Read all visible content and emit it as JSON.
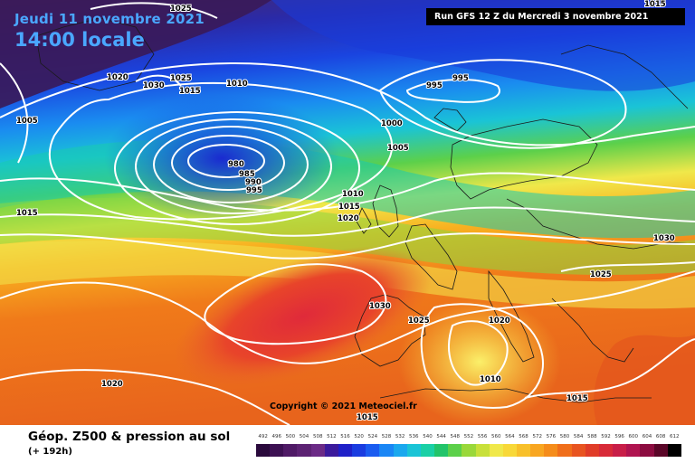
{
  "header": {
    "date": "Jeudi 11 novembre 2021",
    "time": "14:00 locale",
    "run": "Run GFS 12 Z du Mercredi 3 novembre 2021"
  },
  "copyright": "Copyright © 2021 Meteociel.fr",
  "footer": {
    "title": "Géop. Z500 & pression au sol",
    "subtitle": "(+ 192h)"
  },
  "legend": {
    "labels": [
      "492",
      "496",
      "500",
      "504",
      "508",
      "512",
      "516",
      "520",
      "524",
      "528",
      "532",
      "536",
      "540",
      "544",
      "548",
      "552",
      "556",
      "560",
      "564",
      "568",
      "572",
      "576",
      "580",
      "584",
      "588",
      "592",
      "596",
      "600",
      "604",
      "608",
      "612"
    ],
    "colors": [
      "#2a0a3c",
      "#3c1052",
      "#4f1a66",
      "#5c2273",
      "#6b2a86",
      "#3b1a9c",
      "#1f20c8",
      "#1a3ce0",
      "#1a5cf0",
      "#1a86f5",
      "#1aa8ee",
      "#1ac4d6",
      "#1ad0a6",
      "#22c46a",
      "#5cd04a",
      "#9ad83a",
      "#c8e03a",
      "#f0e84a",
      "#f8d838",
      "#f8c02a",
      "#f8a620",
      "#f58c1a",
      "#f06e1a",
      "#e85420",
      "#e03c28",
      "#d82a38",
      "#c81e48",
      "#b01450",
      "#8c0c40",
      "#5a0628",
      "#000000"
    ]
  },
  "isobars": [
    {
      "value": "1025",
      "note": "label top-left"
    },
    {
      "value": "1020"
    },
    {
      "value": "1030"
    },
    {
      "value": "1025"
    },
    {
      "value": "1015"
    },
    {
      "value": "1010"
    },
    {
      "value": "1005"
    },
    {
      "value": "980"
    },
    {
      "value": "985"
    },
    {
      "value": "990"
    },
    {
      "value": "995"
    },
    {
      "value": "995"
    },
    {
      "value": "995"
    },
    {
      "value": "1000"
    },
    {
      "value": "1005"
    },
    {
      "value": "1010"
    },
    {
      "value": "1015"
    },
    {
      "value": "1020"
    },
    {
      "value": "1015"
    },
    {
      "value": "1030"
    },
    {
      "value": "1025"
    },
    {
      "value": "1030"
    },
    {
      "value": "1025"
    },
    {
      "value": "1020"
    },
    {
      "value": "1010"
    },
    {
      "value": "1015"
    },
    {
      "value": "1020"
    },
    {
      "value": "1015"
    },
    {
      "value": "1015"
    }
  ]
}
